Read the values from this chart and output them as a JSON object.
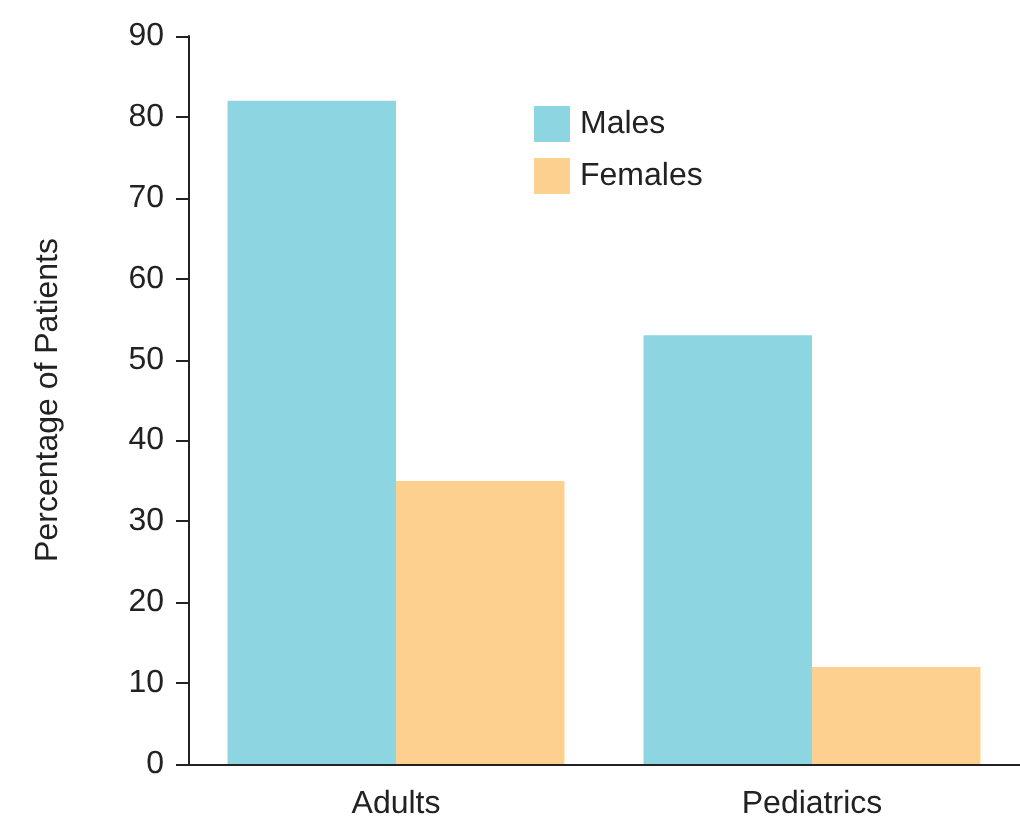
{
  "chart_data": {
    "type": "bar",
    "ylabel": "Percentage of Patients",
    "categories": [
      "Adults",
      "Pediatrics"
    ],
    "series": [
      {
        "name": "Males",
        "color": "#8dd5e1",
        "values": [
          82,
          53
        ]
      },
      {
        "name": "Females",
        "color": "#fdd08f",
        "values": [
          35,
          12
        ]
      }
    ],
    "ylim": [
      0,
      90
    ],
    "yticks": [
      0,
      10,
      20,
      30,
      40,
      50,
      60,
      70,
      80,
      90
    ],
    "grid": false,
    "legend": "top"
  }
}
